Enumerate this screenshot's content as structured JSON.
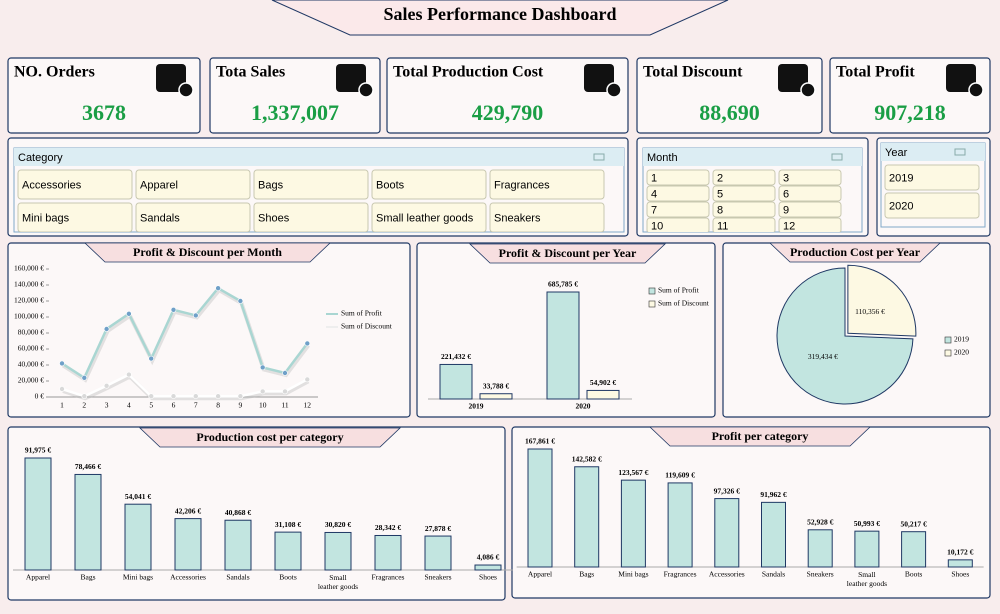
{
  "title": "Sales Performance Dashboard",
  "kpis": [
    {
      "label": "NO. Orders",
      "value": "3678"
    },
    {
      "label": "Tota Sales",
      "value": "1,337,007"
    },
    {
      "label": "Total Production Cost",
      "value": "429,790"
    },
    {
      "label": "Total Discount",
      "value": "88,690"
    },
    {
      "label": "Total Profit",
      "value": "907,218"
    }
  ],
  "slicers": [
    {
      "title": "Category",
      "items": [
        "Accessories",
        "Apparel",
        "Bags",
        "Boots",
        "Fragrances",
        "Mini bags",
        "Sandals",
        "Shoes",
        "Small leather goods",
        "Sneakers"
      ]
    },
    {
      "title": "Month",
      "items": [
        "1",
        "2",
        "3",
        "4",
        "5",
        "6",
        "7",
        "8",
        "9",
        "10",
        "11",
        "12"
      ]
    },
    {
      "title": "Year",
      "items": [
        "2019",
        "2020"
      ]
    }
  ],
  "chart_data": [
    {
      "type": "line",
      "title": "Profit & Discount per Month",
      "categories": [
        "1",
        "2",
        "3",
        "4",
        "5",
        "6",
        "7",
        "8",
        "9",
        "10",
        "11",
        "12"
      ],
      "series": [
        {
          "name": "Sum of Profit",
          "color": "#a9d6d2",
          "marker": "#6fa0c8",
          "values": [
            42000,
            24000,
            85000,
            104000,
            48000,
            109000,
            102000,
            136000,
            120000,
            37000,
            30000,
            67000
          ]
        },
        {
          "name": "Sum of Discount",
          "color": "#ffffff",
          "marker": "#d9d9d9",
          "values": [
            10000,
            1000,
            14000,
            28000,
            1000,
            1000,
            1000,
            1000,
            1000,
            7000,
            7000,
            22000
          ]
        }
      ],
      "ylim": [
        0,
        160000
      ],
      "yticks": [
        {
          "value": 0,
          "label": "0 €"
        },
        {
          "value": 20000,
          "label": "20,000 €"
        },
        {
          "value": 40000,
          "label": "40,000 €"
        },
        {
          "value": 60000,
          "label": "60,000 €"
        },
        {
          "value": 80000,
          "label": "80,000 €"
        },
        {
          "value": 100000,
          "label": "100,000 €"
        },
        {
          "value": 120000,
          "label": "120,000 €"
        },
        {
          "value": 140000,
          "label": "140,000 €"
        },
        {
          "value": 160000,
          "label": "160,000 €"
        }
      ],
      "legend": "right"
    },
    {
      "type": "groupbar",
      "title": "Profit & Discount per Year",
      "categories": [
        "2019",
        "2020"
      ],
      "series": [
        {
          "name": "Sum of Profit",
          "color": "#c2e5e0",
          "values": [
            221432,
            685785
          ],
          "value_labels": [
            "221,432 €",
            "685,785 €"
          ]
        },
        {
          "name": "Sum of Discount",
          "color": "#fdf9e3",
          "values": [
            33788,
            54902
          ],
          "value_labels": [
            "33,788 €",
            "54,902 €"
          ]
        }
      ],
      "legend": "top-right"
    },
    {
      "type": "pie",
      "title": "Production Cost per Year",
      "categories": [
        "2019",
        "2020"
      ],
      "values": [
        319434,
        110356
      ],
      "value_labels": [
        "319,434 €",
        "110,356 €"
      ],
      "colors": [
        "#c2e5e0",
        "#fdf9e3"
      ],
      "legend": "right"
    },
    {
      "type": "bar",
      "title": "Production cost per category",
      "categories": [
        "Apparel",
        "Bags",
        "Mini bags",
        "Accessories",
        "Sandals",
        "Boots",
        "Small leather goods",
        "Fragrances",
        "Sneakers",
        "Shoes"
      ],
      "values": [
        91975,
        78466,
        54041,
        42206,
        40868,
        31108,
        30820,
        28342,
        27878,
        4086
      ],
      "value_labels": [
        "91,975 €",
        "78,466 €",
        "54,041 €",
        "42,206 €",
        "40,868 €",
        "31,108 €",
        "30,820 €",
        "28,342 €",
        "27,878 €",
        "4,086 €"
      ],
      "color": "#c2e5e0"
    },
    {
      "type": "bar",
      "title": "Profit per category",
      "categories": [
        "Apparel",
        "Bags",
        "Mini bags",
        "Fragrances",
        "Accessories",
        "Sandals",
        "Sneakers",
        "Small leather goods",
        "Boots",
        "Shoes"
      ],
      "values": [
        167861,
        142582,
        123567,
        119609,
        97326,
        91962,
        52928,
        50993,
        50217,
        10172
      ],
      "value_labels": [
        "167,861 €",
        "142,582 €",
        "123,567 €",
        "119,609 €",
        "97,326 €",
        "91,962 €",
        "52,928 €",
        "50,993 €",
        "50,217 €",
        "10,172 €"
      ],
      "color": "#c2e5e0"
    }
  ]
}
